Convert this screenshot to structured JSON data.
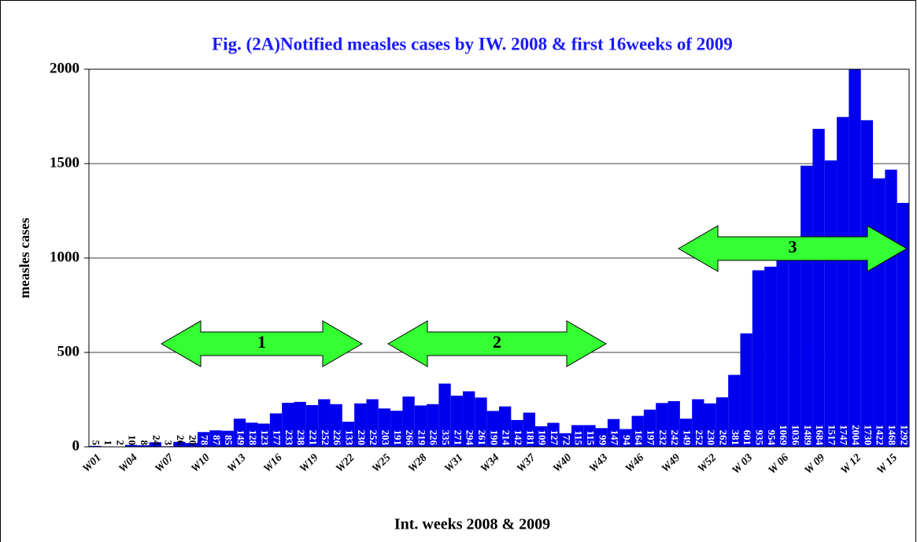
{
  "chart_data": {
    "type": "bar",
    "title": "Fig. (2A)Notified measles cases by IW. 2008 & first 16weeks of 2009",
    "x_label": "Int. weeks 2008 & 2009",
    "y_label": "measles cases",
    "categories": [
      "W01",
      null,
      null,
      "W04",
      null,
      null,
      "W07",
      null,
      null,
      "W10",
      null,
      null,
      "W13",
      null,
      null,
      "W16",
      null,
      null,
      "W19",
      null,
      null,
      "W22",
      null,
      null,
      "W25",
      null,
      null,
      "W28",
      null,
      null,
      "W31",
      null,
      null,
      "W34",
      null,
      null,
      "W37",
      null,
      null,
      "W40",
      null,
      null,
      "W43",
      null,
      null,
      "W46",
      null,
      null,
      "W49",
      null,
      null,
      "W52",
      null,
      null,
      "W 03",
      null,
      null,
      "W 06",
      null,
      null,
      "W 09",
      null,
      null,
      "W 12",
      null,
      null,
      "W 15",
      null
    ],
    "values": [
      5,
      1,
      2,
      10,
      8,
      24,
      3,
      26,
      20,
      78,
      87,
      85,
      149,
      128,
      123,
      177,
      233,
      238,
      221,
      252,
      226,
      133,
      230,
      252,
      203,
      191,
      266,
      219,
      226,
      335,
      271,
      294,
      261,
      190,
      214,
      142,
      181,
      109,
      127,
      72,
      115,
      115,
      99,
      147,
      94,
      164,
      197,
      232,
      242,
      149,
      252,
      230,
      262,
      381,
      601,
      935,
      954,
      1069,
      1036,
      1489,
      1684,
      1517,
      1747,
      2004,
      1730,
      1422,
      1468,
      1292
    ],
    "color": "#0000ee",
    "ylim": [
      0,
      2000
    ],
    "yticks": [
      0,
      500,
      1000,
      1500,
      2000
    ],
    "grid": true,
    "annotations": [
      "1",
      "2",
      "3"
    ]
  }
}
